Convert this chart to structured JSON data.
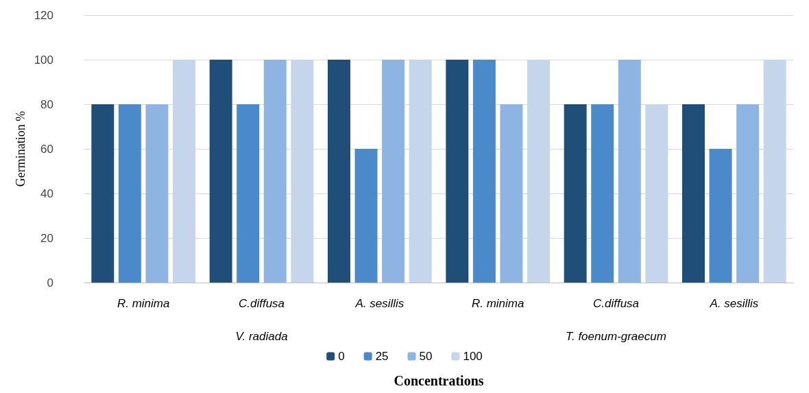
{
  "chart_data": {
    "type": "bar",
    "xlabel": "Concentrations",
    "ylabel": "Germination %",
    "categories": [
      "R. minima",
      "C.diffusa",
      "A. sesillis",
      "R. minima",
      "C.diffusa",
      "A. sesillis"
    ],
    "series": [
      {
        "name": "0",
        "color": "#1f4e79",
        "values": [
          80,
          100,
          100,
          100,
          80,
          80
        ]
      },
      {
        "name": "25",
        "color": "#4a8acb",
        "values": [
          80,
          80,
          60,
          100,
          80,
          60
        ]
      },
      {
        "name": "50",
        "color": "#8db4e2",
        "values": [
          80,
          100,
          100,
          80,
          100,
          80
        ]
      },
      {
        "name": "100",
        "color": "#c5d6ec",
        "values": [
          100,
          100,
          100,
          100,
          80,
          100
        ]
      }
    ],
    "annotations": [
      "V. radiada",
      "T. foenum-graecum"
    ],
    "ylim": [
      0,
      120
    ],
    "yticks": [
      0,
      20,
      40,
      60,
      80,
      100,
      120
    ],
    "grid": "y",
    "legend": "bottom"
  }
}
